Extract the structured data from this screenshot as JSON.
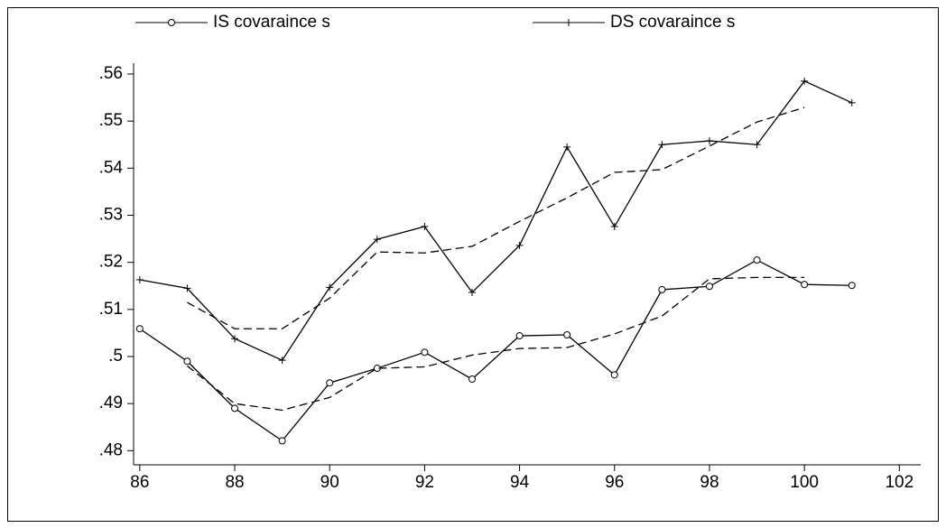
{
  "chart_data": {
    "type": "line",
    "x": [
      86,
      87,
      88,
      89,
      90,
      91,
      92,
      93,
      94,
      95,
      96,
      97,
      98,
      99,
      100,
      101
    ],
    "series": [
      {
        "name": "IS covaraince s",
        "color": "#000000",
        "marker": "circle",
        "values": [
          0.5059,
          0.499,
          0.489,
          0.4821,
          0.4944,
          0.4975,
          0.5009,
          0.4952,
          0.5044,
          0.5046,
          0.4961,
          0.5142,
          0.5149,
          0.5205,
          0.5153,
          0.5151
        ]
      },
      {
        "name": "DS covaraince s",
        "color": "#000000",
        "marker": "plus",
        "values": [
          0.5163,
          0.5145,
          0.5038,
          0.4992,
          0.5147,
          0.5249,
          0.5276,
          0.5136,
          0.5236,
          0.5445,
          0.5276,
          0.545,
          0.5458,
          0.545,
          0.5585,
          0.5539
        ]
      },
      {
        "color": "#000000",
        "dashed": true,
        "values": [
          null,
          0.498,
          0.49,
          0.4886,
          0.4913,
          0.4975,
          0.4978,
          0.5003,
          0.5017,
          0.5019,
          0.5048,
          0.5086,
          0.5165,
          0.5168,
          0.5168,
          null
        ]
      },
      {
        "color": "#000000",
        "dashed": true,
        "values": [
          null,
          0.5115,
          0.5059,
          0.5059,
          0.5124,
          0.5222,
          0.522,
          0.5234,
          0.5287,
          0.5337,
          0.5391,
          0.5397,
          0.5447,
          0.5498,
          0.5529,
          null
        ]
      }
    ],
    "xlim": [
      85.87,
      102.45
    ],
    "xticks": [
      86,
      88,
      90,
      92,
      94,
      96,
      98,
      100,
      102
    ],
    "ylim": [
      0.477,
      0.5623
    ],
    "yticks": [
      {
        "value": 0.48,
        "label": ".48"
      },
      {
        "value": 0.49,
        "label": ".49"
      },
      {
        "value": 0.5,
        "label": ".5"
      },
      {
        "value": 0.51,
        "label": ".51"
      },
      {
        "value": 0.52,
        "label": ".52"
      },
      {
        "value": 0.53,
        "label": ".53"
      },
      {
        "value": 0.54,
        "label": ".54"
      },
      {
        "value": 0.55,
        "label": ".55"
      },
      {
        "value": 0.56,
        "label": ".56"
      }
    ],
    "legend": "top"
  }
}
